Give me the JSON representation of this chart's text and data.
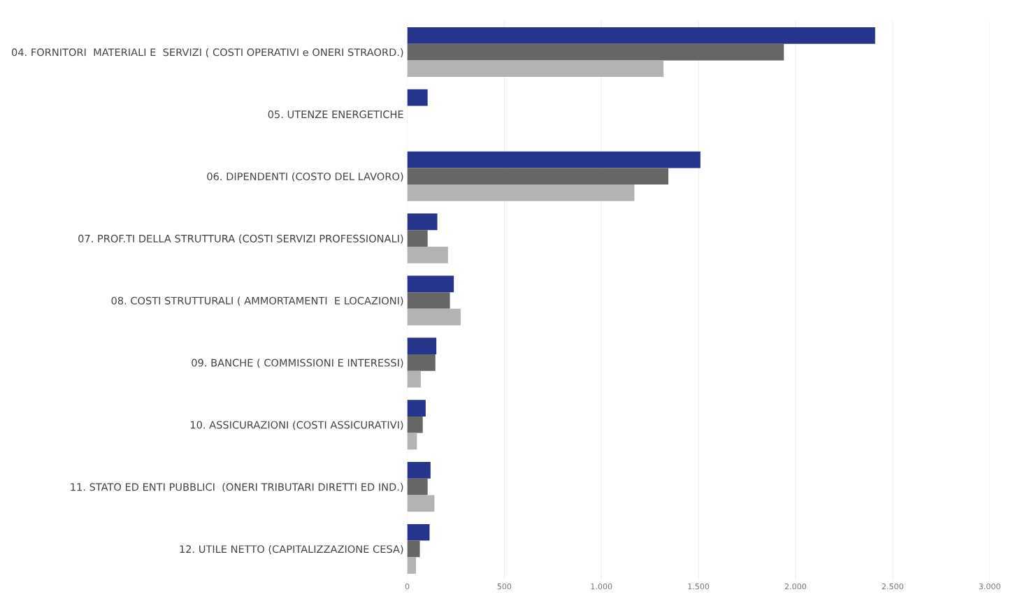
{
  "chart_data": {
    "type": "bar",
    "orientation": "horizontal",
    "categories": [
      "04. FORNITORI  MATERIALI E  SERVIZI ( COSTI OPERATIVI e ONERI STRAORD.)",
      "05. UTENZE ENERGETICHE",
      "06. DIPENDENTI (COSTO DEL LAVORO)",
      "07. PROF.TI DELLA STRUTTURA (COSTI SERVIZI PROFESSIONALI)",
      "08. COSTI STRUTTURALI ( AMMORTAMENTI  E LOCAZIONI)",
      "09. BANCHE ( COMMISSIONI E INTERESSI)",
      "10. ASSICURAZIONI (COSTI ASSICURATIVI)",
      "11. STATO ED ENTI PUBBLICI  (ONERI TRIBUTARI DIRETTI ED IND.)",
      "12. UTILE NETTO (CAPITALIZZAZIONE CESA)"
    ],
    "series": [
      {
        "color": "#27348b",
        "values": [
          2410,
          105,
          1510,
          155,
          240,
          150,
          95,
          120,
          115
        ]
      },
      {
        "color": "#666666",
        "values": [
          1940,
          null,
          1345,
          105,
          220,
          145,
          80,
          105,
          65
        ]
      },
      {
        "color": "#b3b3b3",
        "values": [
          1320,
          null,
          1170,
          210,
          275,
          70,
          50,
          140,
          45
        ]
      }
    ],
    "xlim": [
      0,
      3000
    ],
    "xticks": [
      0,
      {
        "value": 500,
        "label": "500"
      },
      {
        "value": 1000,
        "label": "1.000"
      },
      {
        "value": 1500,
        "label": "1.500"
      },
      {
        "value": 2000,
        "label": "2.000"
      },
      {
        "value": 2500,
        "label": "2.500"
      },
      {
        "value": 3000,
        "label": "3.000"
      }
    ],
    "grid": "x"
  }
}
